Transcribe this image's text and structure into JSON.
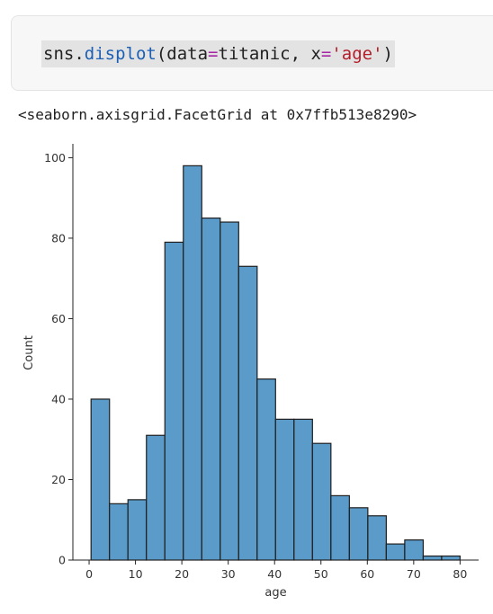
{
  "code_cell": {
    "tokens": [
      {
        "text": "sns.",
        "cls": ""
      },
      {
        "text": "displot",
        "cls": "tk-fn"
      },
      {
        "text": "(data",
        "cls": ""
      },
      {
        "text": "=",
        "cls": "tk-op"
      },
      {
        "text": "titanic, x",
        "cls": ""
      },
      {
        "text": "=",
        "cls": "tk-op"
      },
      {
        "text": "'age'",
        "cls": "tk-str"
      },
      {
        "text": ")",
        "cls": ""
      }
    ]
  },
  "output": {
    "repr": "<seaborn.axisgrid.FacetGrid at 0x7ffb513e8290>"
  },
  "chart_data": {
    "type": "bar",
    "title": "",
    "xlabel": "age",
    "ylabel": "Count",
    "bin_edges": [
      0.42,
      4.4,
      8.38,
      12.36,
      16.34,
      20.32,
      24.3,
      28.28,
      32.26,
      36.24,
      40.21,
      44.19,
      48.17,
      52.15,
      56.13,
      60.11,
      64.09,
      68.07,
      72.05,
      76.03,
      80.0
    ],
    "values": [
      40,
      14,
      15,
      31,
      79,
      98,
      85,
      84,
      73,
      45,
      35,
      35,
      29,
      16,
      13,
      11,
      4,
      5,
      1,
      1
    ],
    "xlim": [
      -3.5,
      84
    ],
    "ylim": [
      0,
      103
    ],
    "xticks": [
      0,
      10,
      20,
      30,
      40,
      50,
      60,
      70,
      80
    ],
    "yticks": [
      0,
      20,
      40,
      60,
      80,
      100
    ],
    "bar_color": "#5a9bc9",
    "edge_color": "#1f1f1f",
    "grid": false
  }
}
